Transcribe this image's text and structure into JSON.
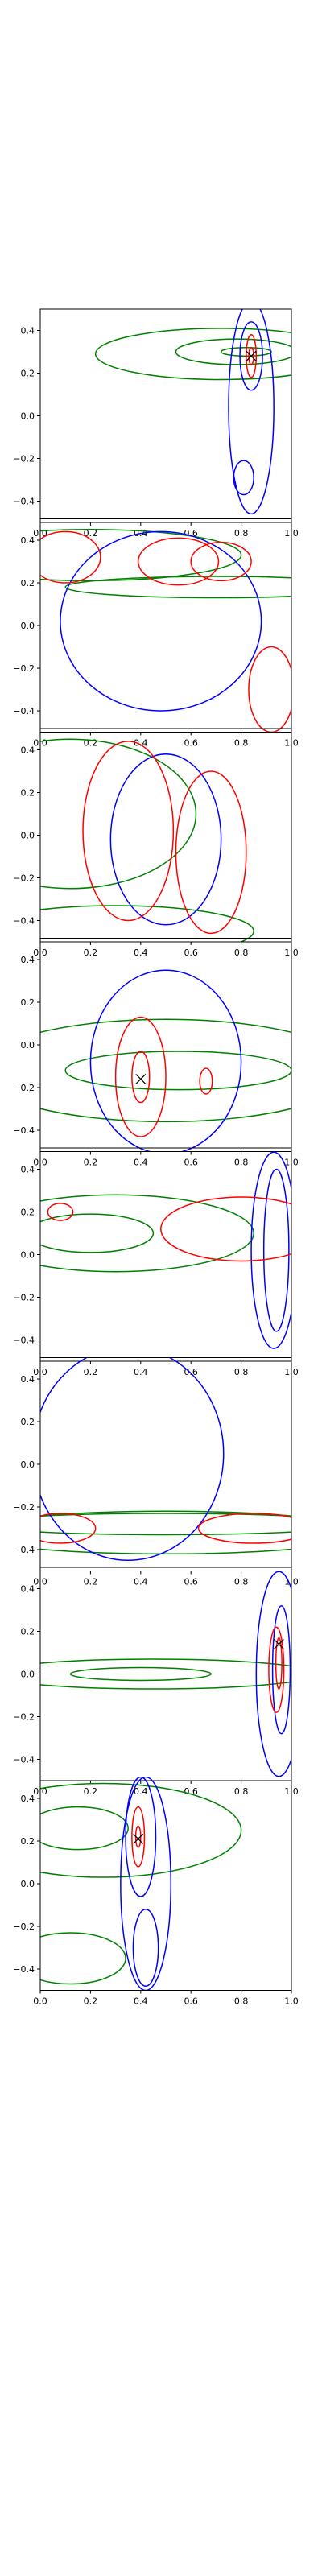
{
  "colors": {
    "red": "#ff0000",
    "green": "#008000",
    "blue": "#0000ff",
    "marker": "#000000"
  },
  "chart_data": [
    {
      "type": "contour",
      "xlim": [
        0,
        1
      ],
      "ylim": [
        -0.5,
        0.5
      ],
      "xticks": [
        "0.0",
        "0.2",
        "0.4",
        "0.6",
        "0.8",
        "1.0"
      ],
      "yticks": [
        "0.4",
        "0.2",
        "0.0",
        "−0.2",
        "−0.4"
      ],
      "marker": {
        "x": 0.84,
        "y": 0.28
      },
      "contours": [
        {
          "color": "green",
          "center": [
            0.72,
            0.29
          ],
          "radii": [
            0.5,
            0.12
          ]
        },
        {
          "color": "green",
          "center": [
            0.78,
            0.3
          ],
          "radii": [
            0.24,
            0.06
          ]
        },
        {
          "color": "green",
          "center": [
            0.82,
            0.3
          ],
          "radii": [
            0.1,
            0.02
          ]
        },
        {
          "color": "blue",
          "center": [
            0.84,
            0.04
          ],
          "radii": [
            0.09,
            0.5
          ]
        },
        {
          "color": "blue",
          "center": [
            0.84,
            0.28
          ],
          "radii": [
            0.045,
            0.16
          ]
        },
        {
          "color": "blue",
          "center": [
            0.81,
            -0.29
          ],
          "radii": [
            0.04,
            0.08
          ]
        },
        {
          "color": "red",
          "center": [
            0.84,
            0.28
          ],
          "radii": [
            0.02,
            0.1
          ]
        },
        {
          "color": "red",
          "center": [
            0.84,
            0.28
          ],
          "radii": [
            0.01,
            0.04
          ]
        }
      ]
    },
    {
      "type": "contour",
      "xlim": [
        0,
        1
      ],
      "ylim": [
        -0.5,
        0.5
      ],
      "xticks": [
        "0.0",
        "0.2",
        "0.4",
        "0.6",
        "0.8",
        "1.0"
      ],
      "yticks": [
        "0.4",
        "0.2",
        "0.0",
        "−0.2",
        "−0.4"
      ],
      "contours": [
        {
          "color": "green",
          "center": [
            0.2,
            0.33
          ],
          "radii": [
            0.6,
            0.12
          ]
        },
        {
          "color": "green",
          "center": [
            0.7,
            0.18
          ],
          "radii": [
            0.6,
            0.05
          ]
        },
        {
          "color": "blue",
          "center": [
            0.48,
            0.02
          ],
          "radii": [
            0.4,
            0.42
          ]
        },
        {
          "color": "red",
          "center": [
            0.1,
            0.32
          ],
          "radii": [
            0.14,
            0.12
          ]
        },
        {
          "color": "red",
          "center": [
            0.55,
            0.3
          ],
          "radii": [
            0.16,
            0.11
          ]
        },
        {
          "color": "red",
          "center": [
            0.72,
            0.3
          ],
          "radii": [
            0.12,
            0.09
          ]
        },
        {
          "color": "red",
          "center": [
            0.92,
            -0.3
          ],
          "radii": [
            0.09,
            0.2
          ]
        }
      ]
    },
    {
      "type": "contour",
      "xlim": [
        0,
        1
      ],
      "ylim": [
        -0.5,
        0.5
      ],
      "xticks": [
        "0.0",
        "0.2",
        "0.4",
        "0.6",
        "0.8",
        "1.0"
      ],
      "yticks": [
        "0.4",
        "0.2",
        "0.0",
        "−0.2",
        "−0.4"
      ],
      "contours": [
        {
          "color": "green",
          "center": [
            0.12,
            0.1
          ],
          "radii": [
            0.5,
            0.35
          ]
        },
        {
          "color": "green",
          "center": [
            0.3,
            -0.45
          ],
          "radii": [
            0.55,
            0.12
          ]
        },
        {
          "color": "blue",
          "center": [
            0.5,
            -0.02
          ],
          "radii": [
            0.22,
            0.4
          ]
        },
        {
          "color": "red",
          "center": [
            0.35,
            0.02
          ],
          "radii": [
            0.18,
            0.42
          ]
        },
        {
          "color": "red",
          "center": [
            0.68,
            -0.08
          ],
          "radii": [
            0.14,
            0.38
          ]
        }
      ]
    },
    {
      "type": "contour",
      "xlim": [
        0,
        1
      ],
      "ylim": [
        -0.5,
        0.5
      ],
      "xticks": [
        "0.0",
        "0.2",
        "0.4",
        "0.6",
        "0.8",
        "1.0"
      ],
      "yticks": [
        "0.4",
        "0.2",
        "0.0",
        "−0.2",
        "−0.4"
      ],
      "marker": {
        "x": 0.4,
        "y": -0.16
      },
      "contours": [
        {
          "color": "green",
          "center": [
            0.5,
            -0.12
          ],
          "radii": [
            0.75,
            0.24
          ]
        },
        {
          "color": "green",
          "center": [
            0.55,
            -0.12
          ],
          "radii": [
            0.45,
            0.09
          ]
        },
        {
          "color": "blue",
          "center": [
            0.5,
            -0.08
          ],
          "radii": [
            0.3,
            0.43
          ]
        },
        {
          "color": "red",
          "center": [
            0.4,
            -0.15
          ],
          "radii": [
            0.1,
            0.28
          ]
        },
        {
          "color": "red",
          "center": [
            0.4,
            -0.15
          ],
          "radii": [
            0.035,
            0.12
          ]
        },
        {
          "color": "red",
          "center": [
            0.66,
            -0.17
          ],
          "radii": [
            0.025,
            0.06
          ]
        }
      ]
    },
    {
      "type": "contour",
      "xlim": [
        0,
        1
      ],
      "ylim": [
        -0.5,
        0.5
      ],
      "xticks": [
        "0.0",
        "0.2",
        "0.4",
        "0.6",
        "0.8",
        "1.0"
      ],
      "yticks": [
        "0.4",
        "0.2",
        "0.0",
        "−0.2",
        "−0.4"
      ],
      "contours": [
        {
          "color": "green",
          "center": [
            0.3,
            0.1
          ],
          "radii": [
            0.55,
            0.18
          ]
        },
        {
          "color": "green",
          "center": [
            0.2,
            0.1
          ],
          "radii": [
            0.25,
            0.09
          ]
        },
        {
          "color": "blue",
          "center": [
            0.93,
            0.02
          ],
          "radii": [
            0.09,
            0.46
          ]
        },
        {
          "color": "blue",
          "center": [
            0.94,
            0.02
          ],
          "radii": [
            0.05,
            0.38
          ]
        },
        {
          "color": "red",
          "center": [
            0.08,
            0.2
          ],
          "radii": [
            0.05,
            0.04
          ]
        },
        {
          "color": "red",
          "center": [
            0.8,
            0.12
          ],
          "radii": [
            0.32,
            0.15
          ]
        }
      ]
    },
    {
      "type": "contour",
      "xlim": [
        0,
        1
      ],
      "ylim": [
        -0.5,
        0.5
      ],
      "xticks": [
        "0.0",
        "0.2",
        "0.4",
        "0.6",
        "0.8",
        "1.0"
      ],
      "yticks": [
        "0.4",
        "0.2",
        "0.0",
        "−0.2",
        "−0.4"
      ],
      "contours": [
        {
          "color": "green",
          "center": [
            0.5,
            -0.32
          ],
          "radii": [
            0.8,
            0.1
          ]
        },
        {
          "color": "green",
          "center": [
            0.5,
            -0.28
          ],
          "radii": [
            0.75,
            0.05
          ]
        },
        {
          "color": "blue",
          "center": [
            0.35,
            0.05
          ],
          "radii": [
            0.38,
            0.5
          ]
        },
        {
          "color": "red",
          "center": [
            0.08,
            -0.3
          ],
          "radii": [
            0.14,
            0.07
          ]
        },
        {
          "color": "red",
          "center": [
            0.85,
            -0.3
          ],
          "radii": [
            0.22,
            0.07
          ]
        }
      ]
    },
    {
      "type": "contour",
      "xlim": [
        0,
        1
      ],
      "ylim": [
        -0.5,
        0.5
      ],
      "xticks": [
        "0.0",
        "0.2",
        "0.4",
        "0.6",
        "0.8",
        "1.0"
      ],
      "yticks": [
        "0.4",
        "0.2",
        "0.0",
        "−0.2",
        "−0.4"
      ],
      "marker": {
        "x": 0.95,
        "y": 0.14
      },
      "contours": [
        {
          "color": "green",
          "center": [
            0.45,
            0.0
          ],
          "radii": [
            0.65,
            0.07
          ]
        },
        {
          "color": "green",
          "center": [
            0.4,
            0.0
          ],
          "radii": [
            0.28,
            0.03
          ]
        },
        {
          "color": "blue",
          "center": [
            0.95,
            0.0
          ],
          "radii": [
            0.09,
            0.48
          ]
        },
        {
          "color": "blue",
          "center": [
            0.96,
            0.02
          ],
          "radii": [
            0.035,
            0.3
          ]
        },
        {
          "color": "red",
          "center": [
            0.94,
            0.02
          ],
          "radii": [
            0.03,
            0.2
          ]
        },
        {
          "color": "red",
          "center": [
            0.95,
            0.05
          ],
          "radii": [
            0.012,
            0.12
          ]
        }
      ]
    },
    {
      "type": "contour",
      "xlim": [
        0,
        1
      ],
      "ylim": [
        -0.5,
        0.5
      ],
      "xticks": [
        "0.0",
        "0.2",
        "0.4",
        "0.6",
        "0.8",
        "1.0"
      ],
      "yticks": [
        "0.4",
        "0.2",
        "0.0",
        "−0.2",
        "−0.4"
      ],
      "marker": {
        "x": 0.39,
        "y": 0.21
      },
      "contours": [
        {
          "color": "green",
          "center": [
            0.25,
            0.25
          ],
          "radii": [
            0.55,
            0.22
          ]
        },
        {
          "color": "green",
          "center": [
            0.15,
            0.26
          ],
          "radii": [
            0.2,
            0.1
          ]
        },
        {
          "color": "green",
          "center": [
            0.12,
            -0.35
          ],
          "radii": [
            0.22,
            0.12
          ]
        },
        {
          "color": "blue",
          "center": [
            0.42,
            0.0
          ],
          "radii": [
            0.1,
            0.5
          ]
        },
        {
          "color": "blue",
          "center": [
            0.4,
            0.22
          ],
          "radii": [
            0.06,
            0.28
          ]
        },
        {
          "color": "blue",
          "center": [
            0.42,
            -0.3
          ],
          "radii": [
            0.05,
            0.18
          ]
        },
        {
          "color": "red",
          "center": [
            0.39,
            0.22
          ],
          "radii": [
            0.025,
            0.14
          ]
        },
        {
          "color": "red",
          "center": [
            0.39,
            0.22
          ],
          "radii": [
            0.01,
            0.05
          ]
        }
      ]
    }
  ]
}
